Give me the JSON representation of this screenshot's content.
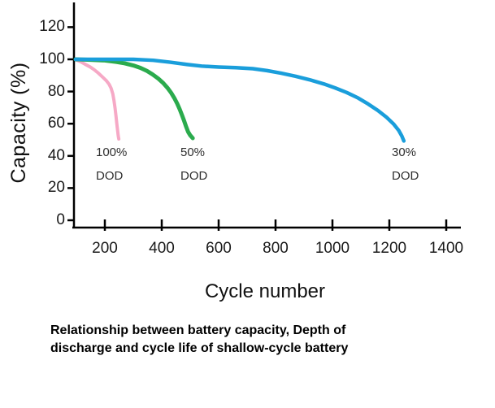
{
  "figure": {
    "caption_line1": "Relationship between battery capacity, Depth of",
    "caption_line2": "discharge and cycle life of shallow-cycle battery"
  },
  "chart_data": {
    "type": "line",
    "title": "",
    "xlabel": "Cycle number",
    "ylabel": "Capacity (%)",
    "xlim": [
      90,
      1460
    ],
    "ylim": [
      0,
      135
    ],
    "xticks": [
      200,
      400,
      600,
      800,
      1000,
      1200,
      1400
    ],
    "yticks": [
      0,
      20,
      40,
      60,
      80,
      100,
      120
    ],
    "grid": false,
    "legend_position": "inline-annotations",
    "axis_color": "#000000",
    "series": [
      {
        "name": "100% DOD",
        "color": "#f6a9c6",
        "points": [
          [
            97,
            99.8
          ],
          [
            115,
            98.5
          ],
          [
            130,
            97
          ],
          [
            148,
            95.3
          ],
          [
            163,
            93.5
          ],
          [
            178,
            91.3
          ],
          [
            192,
            89
          ],
          [
            205,
            86.8
          ],
          [
            215,
            84.5
          ],
          [
            222,
            82
          ],
          [
            228,
            78.5
          ],
          [
            232,
            74.5
          ],
          [
            236,
            69.5
          ],
          [
            239,
            65
          ],
          [
            242,
            60
          ],
          [
            245,
            55.5
          ],
          [
            247,
            52.5
          ],
          [
            249,
            50.5
          ]
        ]
      },
      {
        "name": "50% DOD",
        "color": "#2bab4d",
        "points": [
          [
            97,
            100
          ],
          [
            150,
            99.7
          ],
          [
            200,
            99.3
          ],
          [
            240,
            98.4
          ],
          [
            270,
            97.5
          ],
          [
            300,
            96.2
          ],
          [
            325,
            94.7
          ],
          [
            348,
            92.8
          ],
          [
            368,
            90.6
          ],
          [
            388,
            88
          ],
          [
            405,
            85.3
          ],
          [
            420,
            82.3
          ],
          [
            433,
            79.2
          ],
          [
            444,
            76
          ],
          [
            454,
            72.6
          ],
          [
            463,
            69
          ],
          [
            471,
            65.4
          ],
          [
            479,
            61.6
          ],
          [
            486,
            58
          ],
          [
            493,
            54.8
          ],
          [
            500,
            52.8
          ],
          [
            509,
            51
          ]
        ]
      },
      {
        "name": "30% DOD",
        "color": "#1a9edb",
        "points": [
          [
            97,
            100
          ],
          [
            200,
            100
          ],
          [
            300,
            100
          ],
          [
            370,
            99.4
          ],
          [
            430,
            98.2
          ],
          [
            490,
            96.8
          ],
          [
            540,
            95.8
          ],
          [
            600,
            95.2
          ],
          [
            660,
            94.8
          ],
          [
            720,
            94.2
          ],
          [
            770,
            93
          ],
          [
            820,
            91.4
          ],
          [
            870,
            89.5
          ],
          [
            920,
            87.3
          ],
          [
            970,
            84.7
          ],
          [
            1010,
            82.2
          ],
          [
            1050,
            79.4
          ],
          [
            1090,
            76
          ],
          [
            1125,
            72.3
          ],
          [
            1160,
            68.2
          ],
          [
            1190,
            64
          ],
          [
            1215,
            59.8
          ],
          [
            1233,
            55.8
          ],
          [
            1244,
            52.3
          ],
          [
            1251,
            49.3
          ]
        ]
      }
    ],
    "annotations": [
      {
        "text1": "100%",
        "text2": "DOD",
        "series": "100% DOD"
      },
      {
        "text1": "50%",
        "text2": "DOD",
        "series": "50% DOD"
      },
      {
        "text1": "30%",
        "text2": "DOD",
        "series": "30% DOD"
      }
    ]
  }
}
